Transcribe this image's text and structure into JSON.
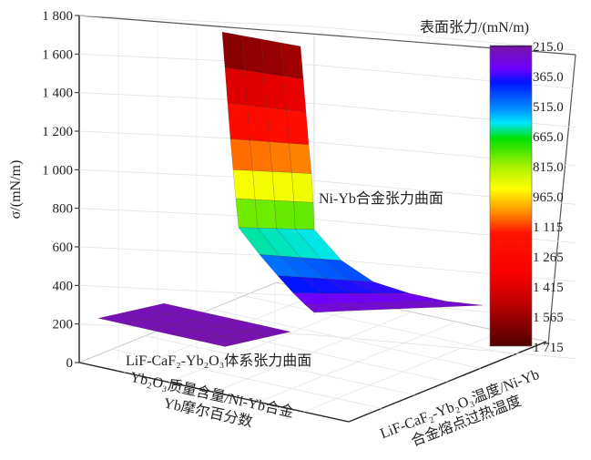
{
  "chart_data": {
    "type": "surface3d",
    "zlabel": "σ/(mN/m)",
    "xlabel_line1": "Yb₂O₃质量含量/Ni-Yb合金",
    "xlabel_line2": "Yb摩尔百分数",
    "ylabel_line1": "LiF-CaF₂-Yb₂O₃温度/Ni-Yb",
    "ylabel_line2": "合金熔点过热温度",
    "zlim": [
      0,
      1800
    ],
    "z_ticks": [
      "0",
      "200",
      "400",
      "600",
      "800",
      "1 000",
      "1 200",
      "1 400",
      "1 600",
      "1 800"
    ],
    "z_tick_values": [
      0,
      200,
      400,
      600,
      800,
      1000,
      1200,
      1400,
      1600,
      1800
    ],
    "grid": true,
    "colorbar": {
      "title": "表面张力/(mN/m)",
      "ticks": [
        "215.0",
        "365.0",
        "515.0",
        "665.0",
        "815.0",
        "965.0",
        "1 115",
        "1 265",
        "1 415",
        "1 565",
        "1 715"
      ],
      "range": [
        215,
        1715
      ],
      "colormap": "rainbow (purple-low to dark red-high)"
    },
    "surfaces": [
      {
        "name": "Ni-Yb合金张力曲面",
        "z": [
          [
            1700,
            1685,
            1670,
            1655,
            1640
          ],
          [
            1520,
            1508,
            1495,
            1482,
            1470
          ],
          [
            1340,
            1330,
            1320,
            1310,
            1300
          ],
          [
            1160,
            1152,
            1145,
            1137,
            1130
          ],
          [
            1000,
            995,
            990,
            985,
            980
          ],
          [
            850,
            845,
            840,
            835,
            830
          ],
          [
            700,
            698,
            695,
            692,
            690
          ],
          [
            560,
            550,
            540,
            530,
            520
          ],
          [
            450,
            438,
            425,
            412,
            400
          ],
          [
            360,
            352,
            345,
            337,
            330
          ],
          [
            300,
            295,
            290,
            285,
            280
          ],
          [
            260,
            258,
            255,
            252,
            250
          ]
        ]
      },
      {
        "name": "LiF-CaF₂-Yb₂O₃体系张力曲面",
        "z": [
          [
            245,
            243,
            241,
            239,
            237,
            235
          ],
          [
            243,
            241,
            239,
            237,
            235,
            233
          ],
          [
            241,
            239,
            237,
            235,
            233,
            231
          ],
          [
            239,
            237,
            235,
            233,
            231,
            229
          ]
        ]
      }
    ]
  }
}
